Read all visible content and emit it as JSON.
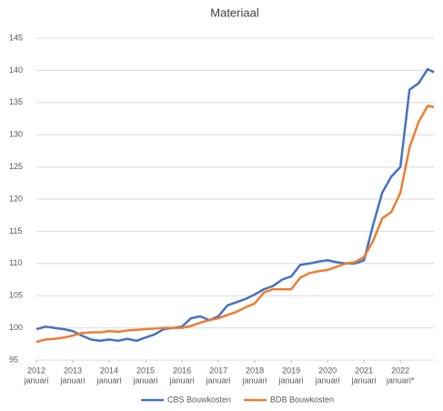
{
  "chart_data": {
    "type": "line",
    "title": "Materiaal",
    "x": [
      2012,
      2012.25,
      2012.5,
      2012.75,
      2013,
      2013.25,
      2013.5,
      2013.75,
      2014,
      2014.25,
      2014.5,
      2014.75,
      2015,
      2015.25,
      2015.5,
      2015.75,
      2016,
      2016.25,
      2016.5,
      2016.75,
      2017,
      2017.25,
      2017.5,
      2017.75,
      2018,
      2018.25,
      2018.5,
      2018.75,
      2019,
      2019.25,
      2019.5,
      2019.75,
      2020,
      2020.25,
      2020.5,
      2020.75,
      2021,
      2021.25,
      2021.5,
      2021.75,
      2022,
      2022.25,
      2022.5,
      2022.75,
      2022.92
    ],
    "series": [
      {
        "name": "CBS Bouwkosten",
        "color": "#4472c4",
        "values": [
          99.8,
          100.2,
          100.0,
          99.8,
          99.5,
          98.8,
          98.2,
          98.0,
          98.2,
          98.0,
          98.3,
          98.0,
          98.5,
          99.0,
          99.8,
          100.0,
          100.2,
          101.5,
          101.8,
          101.2,
          101.8,
          103.5,
          104.0,
          104.5,
          105.2,
          106.0,
          106.5,
          107.5,
          108.0,
          109.8,
          110.0,
          110.3,
          110.5,
          110.2,
          110.0,
          110.0,
          110.5,
          116.0,
          121.0,
          123.5,
          125.0,
          137.0,
          138.0,
          140.2,
          139.7
        ]
      },
      {
        "name": "BDB Bouwkosten",
        "color": "#ed7d31",
        "values": [
          97.8,
          98.2,
          98.3,
          98.5,
          98.8,
          99.2,
          99.3,
          99.3,
          99.5,
          99.4,
          99.6,
          99.7,
          99.8,
          99.9,
          100.0,
          100.0,
          100.0,
          100.3,
          100.8,
          101.2,
          101.5,
          102.0,
          102.5,
          103.2,
          103.8,
          105.5,
          106.0,
          106.0,
          106.0,
          107.8,
          108.5,
          108.8,
          109.0,
          109.5,
          110.0,
          110.2,
          111.0,
          113.5,
          117.0,
          118.0,
          121.0,
          128.0,
          132.0,
          134.5,
          134.3
        ]
      }
    ],
    "xlim": [
      2012,
      2022.92
    ],
    "xticks": [
      2012,
      2013,
      2014,
      2015,
      2016,
      2017,
      2018,
      2019,
      2020,
      2021,
      2022
    ],
    "xtick_sublabels": [
      "januari",
      "januari",
      "januari",
      "januari",
      "januari",
      "januari",
      "januari",
      "januari",
      "januari",
      "januari",
      "januari*"
    ],
    "ylim": [
      95,
      145
    ],
    "yticks": [
      95,
      100,
      105,
      110,
      115,
      120,
      125,
      130,
      135,
      140,
      145
    ],
    "grid": true,
    "legend": "bottom"
  }
}
